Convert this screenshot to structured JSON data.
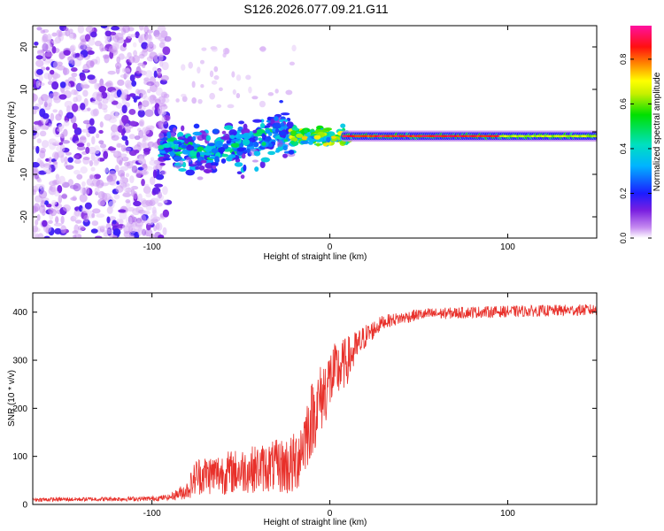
{
  "title": "S126.2026.077.09.21.G11",
  "chart_data": [
    {
      "type": "heatmap",
      "name": "spectrogram",
      "xlabel": "Height of straight line (km)",
      "ylabel": "Frequency (Hz)",
      "xlim": [
        -167,
        150
      ],
      "ylim": [
        -25,
        25
      ],
      "xticks": [
        -100,
        0,
        100
      ],
      "yticks": [
        -20,
        -10,
        0,
        10,
        20
      ],
      "colorbar": {
        "label": "Normalized spectral amplitude",
        "range": [
          0,
          0.95
        ],
        "ticks": [
          0.0,
          0.2,
          0.4,
          0.6,
          0.8
        ]
      },
      "regions": [
        {
          "x": [
            -167,
            -95
          ],
          "description": "diffuse noise",
          "amplitude": [
            0.0,
            0.25
          ],
          "freq_center": 0
        },
        {
          "x": [
            -95,
            -20
          ],
          "description": "scattered signal",
          "amplitude": [
            0.1,
            0.5
          ],
          "freq_center": -3
        },
        {
          "x": [
            -20,
            10
          ],
          "description": "converging tone",
          "amplitude": [
            0.4,
            0.95
          ],
          "freq_center": -1
        },
        {
          "x": [
            10,
            150
          ],
          "description": "stable tone",
          "amplitude": [
            0.6,
            0.95
          ],
          "freq_center": -1
        }
      ]
    },
    {
      "type": "line",
      "name": "snr",
      "xlabel": "Height of straight line (km)",
      "ylabel": "SNR (10 * v/v)",
      "xlim": [
        -167,
        150
      ],
      "ylim": [
        0,
        440
      ],
      "xticks": [
        -100,
        0,
        100
      ],
      "yticks": [
        0,
        100,
        200,
        300,
        400
      ],
      "color": "#e8302a",
      "profile_x": [
        -167,
        -100,
        -90,
        -80,
        -75,
        -60,
        -40,
        -30,
        -20,
        -10,
        0,
        10,
        20,
        30,
        50,
        80,
        150
      ],
      "profile_mean": [
        10,
        12,
        15,
        30,
        60,
        65,
        75,
        80,
        80,
        180,
        260,
        300,
        350,
        380,
        395,
        400,
        405
      ],
      "profile_noise": [
        4,
        5,
        6,
        20,
        40,
        45,
        50,
        55,
        70,
        80,
        70,
        50,
        25,
        14,
        12,
        12,
        12
      ]
    }
  ]
}
